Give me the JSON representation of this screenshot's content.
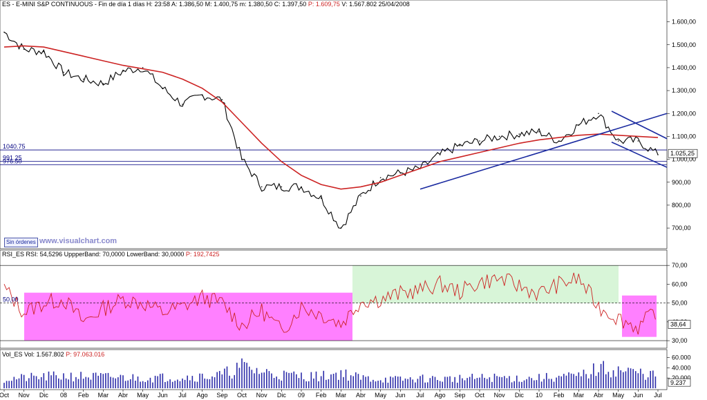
{
  "header": {
    "title": "ES - E-MINI S&P CONTINUOUS",
    "period": "Fin de día 1 días",
    "h_label": "H:",
    "h_value": "23:58",
    "a_label": "A:",
    "a_value": "1.386,50",
    "m_label": "M:",
    "m_value": "1.400,75",
    "min_label": "m:",
    "min_value": "1.380,50",
    "c_label": "C:",
    "c_value": "1.397,50",
    "p_label": "P:",
    "p_value": "1.609,75",
    "v_label": "V:",
    "v_value": "1.567.802",
    "date": "25/04/2008"
  },
  "rsi_header": {
    "name": "RSI_ES",
    "rsi_label": "RSI:",
    "rsi_value": "54,5296",
    "upper_label": "UppperBand:",
    "upper_value": "70,0000",
    "lower_label": "LowerBand:",
    "lower_value": "30,0000",
    "p_label": "P:",
    "p_value": "192,7425"
  },
  "vol_header": {
    "name": "Vol_ES",
    "vol_label": "Vol:",
    "vol_value": "1.567.802",
    "p_label": "P:",
    "p_value": "97.063.016"
  },
  "button_label": "Sin órdenes",
  "watermark": "www.visualchart.com",
  "colors": {
    "price": "#000000",
    "ma": "#cc2222",
    "trend": "#1a2aa0",
    "rsi": "#cc2222",
    "rsi_box_magenta": "#ff80ff",
    "rsi_box_green": "#d8f5d8",
    "volume": "#2a2aa8",
    "grid": "#000080"
  },
  "chart_data": [
    {
      "type": "line",
      "title": "",
      "series": [
        {
          "x": [
            "Oct",
            "Nov",
            "Dec",
            "08",
            "Feb",
            "Mar",
            "Apr",
            "May",
            "Jun",
            "Jul",
            "Ago",
            "Sep",
            "Oct",
            "Nov",
            "Dic",
            "09",
            "Feb",
            "Mar",
            "Apr",
            "May",
            "Jun",
            "Jul",
            "Ago",
            "Sep",
            "Oct",
            "Nov",
            "Dic",
            "10",
            "Feb",
            "Mar",
            "Apr",
            "May",
            "Jun",
            "Jul"
          ],
          "values": [
            1555,
            1480,
            1470,
            1380,
            1350,
            1330,
            1385,
            1400,
            1310,
            1240,
            1280,
            1260,
            1000,
            880,
            880,
            880,
            830,
            700,
            840,
            920,
            940,
            960,
            1020,
            1060,
            1080,
            1100,
            1110,
            1120,
            1080,
            1150,
            1200,
            1080,
            1080,
            1020
          ]
        },
        {
          "name": "",
          "values": [
            1490,
            1495,
            1490,
            1470,
            1450,
            1430,
            1410,
            1395,
            1380,
            1350,
            1310,
            1250,
            1160,
            1070,
            990,
            930,
            890,
            870,
            880,
            900,
            930,
            960,
            990,
            1010,
            1030,
            1050,
            1070,
            1085,
            1095,
            1105,
            1110,
            1105,
            1100,
            1095
          ]
        }
      ],
      "ylim": [
        640,
        1650
      ],
      "yticks": [
        "1.600,00",
        "1.500,00",
        "1.400,00",
        "1.300,00",
        "1.200,00",
        "1.100,00",
        "1.000,00",
        "900,00",
        "800,00",
        "700,00"
      ],
      "hlines": [
        {
          "label": "1040.75",
          "value": 1040.75
        },
        {
          "label": "991.25",
          "value": 991.25
        },
        {
          "label": "976.50",
          "value": 976.5
        }
      ],
      "last_value_label": "1.025,25"
    },
    {
      "type": "line",
      "title": "",
      "values": [
        58,
        45,
        50,
        52,
        40,
        47,
        52,
        50,
        45,
        48,
        53,
        50,
        38,
        46,
        35,
        48,
        44,
        39,
        51,
        52,
        55,
        57,
        60,
        56,
        61,
        63,
        59,
        55,
        60,
        63,
        48,
        42,
        37,
        47
      ],
      "ylim": [
        26,
        73
      ],
      "yticks": [
        "70,00",
        "60,00",
        "50,00",
        "40,00",
        "30,00"
      ],
      "hlines": [
        70,
        50,
        30
      ],
      "side_labels": [
        "50,00"
      ],
      "last_value_label": "38,64"
    },
    {
      "type": "bar",
      "title": "",
      "values": [
        18000,
        20000,
        22000,
        24000,
        23000,
        22000,
        21000,
        20000,
        21000,
        22000,
        23000,
        26000,
        42000,
        32000,
        26000,
        24000,
        23000,
        30000,
        20000,
        18000,
        17000,
        19000,
        18000,
        19000,
        20000,
        21000,
        19000,
        20000,
        22000,
        23000,
        38000,
        35000,
        30000,
        25000
      ],
      "ylim": [
        0,
        62000
      ],
      "yticks": [
        "60.000",
        "40.000",
        "20.000"
      ],
      "last_value_label": "9.237"
    }
  ],
  "x_axis_labels": [
    "Oct",
    "Nov",
    "Dic",
    "08",
    "Feb",
    "Mar",
    "Abr",
    "May",
    "Jun",
    "Jul",
    "Ago",
    "Sep",
    "Oct",
    "Nov",
    "Dic",
    "09",
    "Feb",
    "Mar",
    "Abr",
    "May",
    "Jun",
    "Jul",
    "Ago",
    "Sep",
    "Oct",
    "Nov",
    "Dic",
    "10",
    "Feb",
    "Mar",
    "Abr",
    "May",
    "Jun",
    "Jul"
  ]
}
